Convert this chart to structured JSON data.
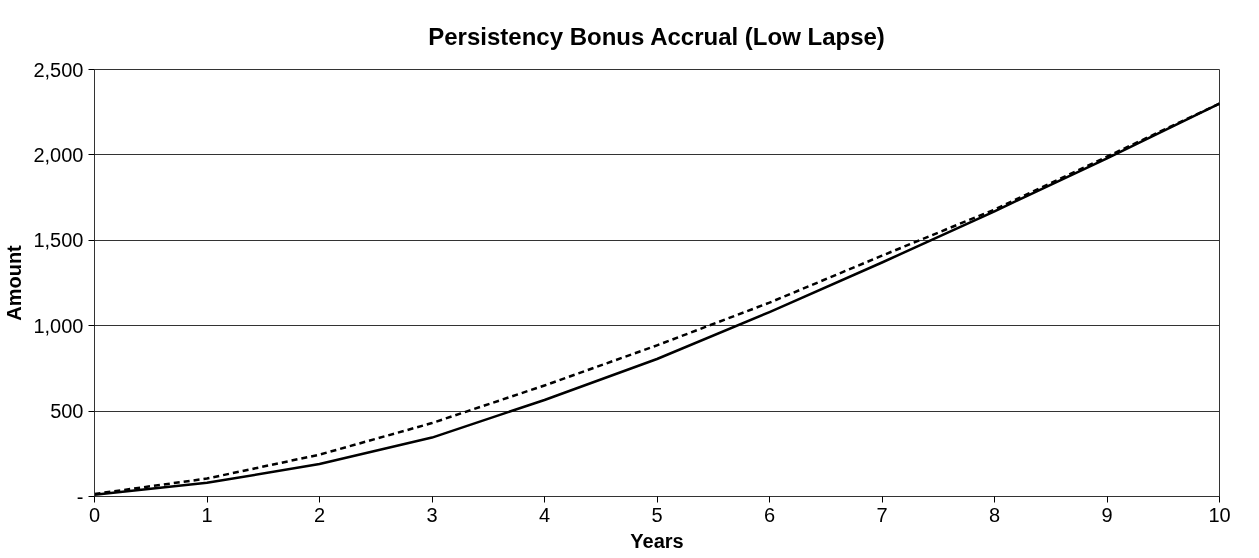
{
  "chart_data": {
    "type": "line",
    "title": "Persistency Bonus Accrual (Low Lapse)",
    "xlabel": "Years",
    "ylabel": "Amount",
    "x": [
      0,
      1,
      2,
      3,
      4,
      5,
      6,
      7,
      8,
      9,
      10
    ],
    "series": [
      {
        "color": "#000000",
        "line_style": "solid",
        "values": [
          10,
          80,
          190,
          345,
          565,
          805,
          1080,
          1370,
          1670,
          1980,
          2300
        ]
      },
      {
        "color": "#000000",
        "line_style": "dashed",
        "values": [
          15,
          105,
          245,
          430,
          650,
          885,
          1135,
          1410,
          1680,
          1990,
          2300
        ]
      }
    ],
    "xlim": [
      0,
      10
    ],
    "xticks": [
      0,
      1,
      2,
      3,
      4,
      5,
      6,
      7,
      8,
      9,
      10
    ],
    "ylim": [
      0,
      2500
    ],
    "yticks": [
      {
        "value": 0,
        "label": "-"
      },
      {
        "value": 500,
        "label": "500"
      },
      {
        "value": 1000,
        "label": "1,000"
      },
      {
        "value": 1500,
        "label": "1,500"
      },
      {
        "value": 2000,
        "label": "2,000"
      },
      {
        "value": 2500,
        "label": "2,500"
      }
    ],
    "grid": "y",
    "marker": "none"
  }
}
